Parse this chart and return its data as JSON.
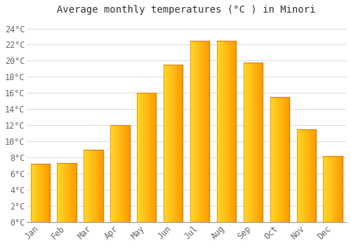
{
  "title": "Average monthly temperatures (°C ) in Minori",
  "months": [
    "Jan",
    "Feb",
    "Mar",
    "Apr",
    "May",
    "Jun",
    "Jul",
    "Aug",
    "Sep",
    "Oct",
    "Nov",
    "Dec"
  ],
  "values": [
    7.2,
    7.3,
    9.0,
    12.0,
    16.0,
    19.5,
    22.5,
    22.5,
    19.8,
    15.5,
    11.5,
    8.2
  ],
  "bar_color_left": "#FFD040",
  "bar_color_right": "#FFA000",
  "bar_edge_color": "#E08000",
  "background_color": "#FFFFFF",
  "grid_color": "#DDDDDD",
  "ylim": [
    0,
    25
  ],
  "yticks": [
    0,
    2,
    4,
    6,
    8,
    10,
    12,
    14,
    16,
    18,
    20,
    22,
    24
  ],
  "ytick_labels": [
    "0°C",
    "2°C",
    "4°C",
    "6°C",
    "8°C",
    "10°C",
    "12°C",
    "14°C",
    "16°C",
    "18°C",
    "20°C",
    "22°C",
    "24°C"
  ],
  "title_fontsize": 10,
  "tick_fontsize": 8.5,
  "bar_width": 0.72,
  "figsize": [
    5.0,
    3.5
  ],
  "dpi": 100
}
